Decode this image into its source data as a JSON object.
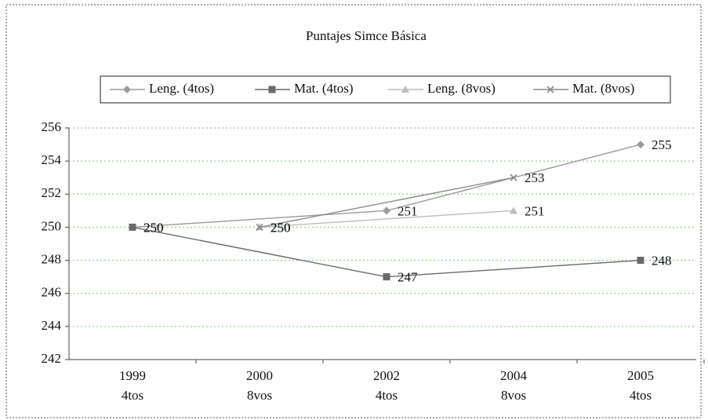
{
  "chart_data": {
    "type": "line",
    "title": "Puntajes Simce Básica",
    "categories": [
      [
        "1999",
        "4tos"
      ],
      [
        "2000",
        "8vos"
      ],
      [
        "2002",
        "4tos"
      ],
      [
        "2004",
        "8vos"
      ],
      [
        "2005",
        "4tos"
      ]
    ],
    "series": [
      {
        "name": "Leng. (4tos)",
        "color": "#9a9a9a",
        "marker": "diamond",
        "values": [
          250,
          null,
          251,
          null,
          255
        ]
      },
      {
        "name": "Mat. (4tos)",
        "color": "#6a6a6a",
        "marker": "square",
        "values": [
          250,
          null,
          247,
          null,
          248
        ]
      },
      {
        "name": "Leng. (8vos)",
        "color": "#bdbdbd",
        "marker": "triangle",
        "values": [
          null,
          250,
          null,
          251,
          null
        ]
      },
      {
        "name": "Mat. (8vos)",
        "color": "#8a8a8a",
        "marker": "x",
        "values": [
          null,
          250,
          null,
          253,
          null
        ]
      }
    ],
    "ylim": [
      242,
      256
    ],
    "yticks": [
      242,
      244,
      246,
      248,
      250,
      252,
      254,
      256
    ],
    "grid": true,
    "connect_gaps": true,
    "legend": "top"
  }
}
